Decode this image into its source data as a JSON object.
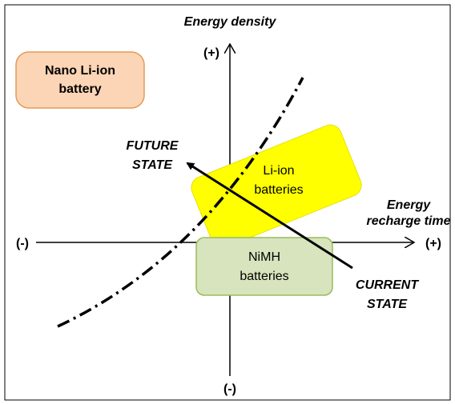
{
  "axes": {
    "y_label": "Energy density",
    "y_plus": "(+)",
    "y_minus": "(-)",
    "x_label": [
      "Energy",
      "recharge time"
    ],
    "x_plus": "(+)",
    "x_minus": "(-)"
  },
  "nodes": [
    {
      "id": "nano",
      "label": [
        "Nano Li-ion",
        "battery"
      ]
    },
    {
      "id": "liion",
      "label": [
        "Li-ion",
        "batteries"
      ]
    },
    {
      "id": "nimh",
      "label": [
        "NiMH",
        "batteries"
      ]
    }
  ],
  "states": {
    "future": [
      "FUTURE",
      "STATE"
    ],
    "current": [
      "CURRENT",
      "STATE"
    ]
  }
}
